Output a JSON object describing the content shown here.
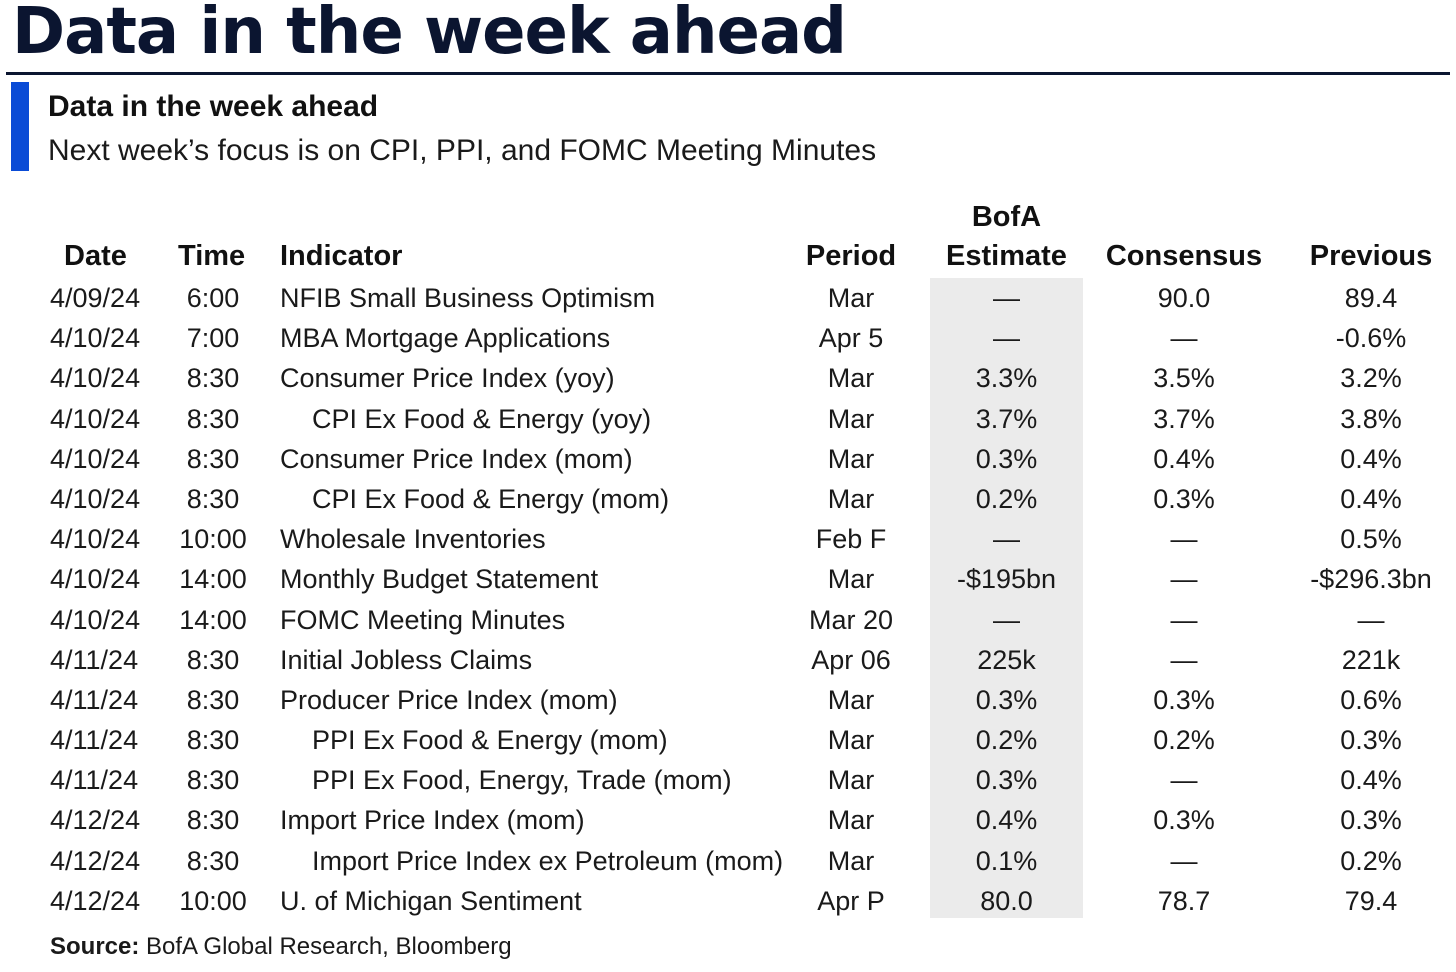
{
  "header": {
    "title": "Data in the week ahead"
  },
  "panel": {
    "heading": "Data in the week ahead",
    "caption": "Next week’s focus is on CPI, PPI, and FOMC Meeting Minutes",
    "accent_color": "#0a4bd6"
  },
  "table": {
    "columns": {
      "date": "Date",
      "time": "Time",
      "indicator": "Indicator",
      "period": "Period",
      "estimate_line1": "BofA",
      "estimate_line2": "Estimate",
      "consensus": "Consensus",
      "previous": "Previous"
    },
    "rows": [
      {
        "date": "4/09/24",
        "time": "6:00",
        "indicator": "NFIB Small Business Optimism",
        "sub": false,
        "period": "Mar",
        "estimate": "—",
        "consensus": "90.0",
        "previous": "89.4"
      },
      {
        "date": "4/10/24",
        "time": "7:00",
        "indicator": "MBA Mortgage Applications",
        "sub": false,
        "period": "Apr 5",
        "estimate": "—",
        "consensus": "—",
        "previous": "-0.6%"
      },
      {
        "date": "4/10/24",
        "time": "8:30",
        "indicator": "Consumer Price Index (yoy)",
        "sub": false,
        "period": "Mar",
        "estimate": "3.3%",
        "consensus": "3.5%",
        "previous": "3.2%"
      },
      {
        "date": "4/10/24",
        "time": "8:30",
        "indicator": "CPI Ex Food & Energy (yoy)",
        "sub": true,
        "period": "Mar",
        "estimate": "3.7%",
        "consensus": "3.7%",
        "previous": "3.8%"
      },
      {
        "date": "4/10/24",
        "time": "8:30",
        "indicator": "Consumer Price Index (mom)",
        "sub": false,
        "period": "Mar",
        "estimate": "0.3%",
        "consensus": "0.4%",
        "previous": "0.4%"
      },
      {
        "date": "4/10/24",
        "time": "8:30",
        "indicator": "CPI Ex Food & Energy (mom)",
        "sub": true,
        "period": "Mar",
        "estimate": "0.2%",
        "consensus": "0.3%",
        "previous": "0.4%"
      },
      {
        "date": "4/10/24",
        "time": "10:00",
        "indicator": "Wholesale Inventories",
        "sub": false,
        "period": "Feb F",
        "estimate": "—",
        "consensus": "—",
        "previous": "0.5%"
      },
      {
        "date": "4/10/24",
        "time": "14:00",
        "indicator": "Monthly Budget Statement",
        "sub": false,
        "period": "Mar",
        "estimate": "-$195bn",
        "consensus": "—",
        "previous": "-$296.3bn"
      },
      {
        "date": "4/10/24",
        "time": "14:00",
        "indicator": "FOMC Meeting Minutes",
        "sub": false,
        "period": "Mar 20",
        "estimate": "—",
        "consensus": "—",
        "previous": "—"
      },
      {
        "date": "4/11/24",
        "time": "8:30",
        "indicator": "Initial Jobless Claims",
        "sub": false,
        "period": "Apr 06",
        "estimate": "225k",
        "consensus": "—",
        "previous": "221k"
      },
      {
        "date": "4/11/24",
        "time": "8:30",
        "indicator": "Producer Price Index (mom)",
        "sub": false,
        "period": "Mar",
        "estimate": "0.3%",
        "consensus": "0.3%",
        "previous": "0.6%"
      },
      {
        "date": "4/11/24",
        "time": "8:30",
        "indicator": "PPI Ex Food & Energy (mom)",
        "sub": true,
        "period": "Mar",
        "estimate": "0.2%",
        "consensus": "0.2%",
        "previous": "0.3%"
      },
      {
        "date": "4/11/24",
        "time": "8:30",
        "indicator": "PPI Ex Food, Energy, Trade (mom)",
        "sub": true,
        "period": "Mar",
        "estimate": "0.3%",
        "consensus": "—",
        "previous": "0.4%"
      },
      {
        "date": "4/12/24",
        "time": "8:30",
        "indicator": "Import Price Index (mom)",
        "sub": false,
        "period": "Mar",
        "estimate": "0.4%",
        "consensus": "0.3%",
        "previous": "0.3%"
      },
      {
        "date": "4/12/24",
        "time": "8:30",
        "indicator": "Import Price Index ex Petroleum (mom)",
        "sub": true,
        "period": "Mar",
        "estimate": "0.1%",
        "consensus": "—",
        "previous": "0.2%"
      },
      {
        "date": "4/12/24",
        "time": "10:00",
        "indicator": "U. of Michigan Sentiment",
        "sub": false,
        "period": "Apr P",
        "estimate": "80.0",
        "consensus": "78.7",
        "previous": "79.4"
      }
    ]
  },
  "footer": {
    "source_label": "Source:",
    "source_text": "BofA Global Research, Bloomberg"
  }
}
